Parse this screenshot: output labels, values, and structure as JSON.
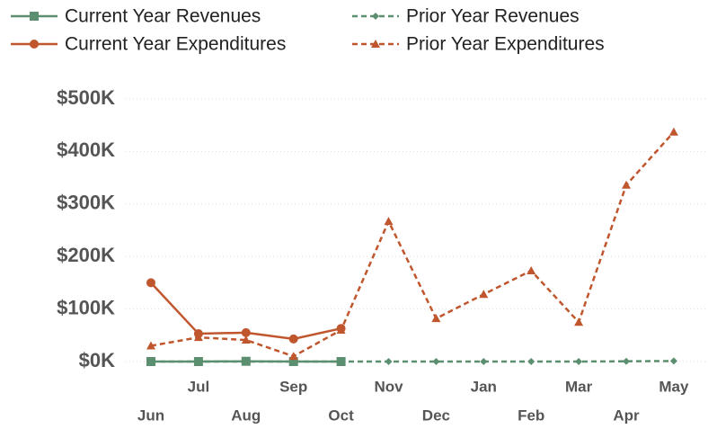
{
  "chart_data": {
    "type": "line",
    "categories": [
      "Jun",
      "Jul",
      "Aug",
      "Sep",
      "Oct",
      "Nov",
      "Dec",
      "Jan",
      "Feb",
      "Mar",
      "Apr",
      "May"
    ],
    "series": [
      {
        "name": "Current Year Revenues",
        "color": "#5b8f6f",
        "dash": false,
        "marker": "square",
        "values": [
          0,
          0,
          500,
          0,
          0,
          null,
          null,
          null,
          null,
          null,
          null,
          null
        ]
      },
      {
        "name": "Prior Year Revenues",
        "color": "#5b8f6f",
        "dash": true,
        "marker": "diamond",
        "values": [
          0,
          0,
          0,
          0,
          0,
          0,
          0,
          0,
          0,
          0,
          500,
          1000
        ]
      },
      {
        "name": "Current Year Expenditures",
        "color": "#c0562d",
        "dash": false,
        "marker": "circle",
        "values": [
          150000,
          53000,
          55000,
          43000,
          63000,
          null,
          null,
          null,
          null,
          null,
          null,
          null
        ]
      },
      {
        "name": "Prior Year Expenditures",
        "color": "#c0562d",
        "dash": true,
        "marker": "triangle",
        "values": [
          30000,
          46000,
          41000,
          10000,
          60000,
          267000,
          82000,
          128000,
          173000,
          75000,
          336000,
          437000
        ]
      }
    ],
    "ylim": [
      0,
      500000
    ],
    "yticks": [
      {
        "value": 0,
        "label": "$0K"
      },
      {
        "value": 100000,
        "label": "$100K"
      },
      {
        "value": 200000,
        "label": "$200K"
      },
      {
        "value": 300000,
        "label": "$300K"
      },
      {
        "value": 400000,
        "label": "$400K"
      },
      {
        "value": 500000,
        "label": "$500K"
      }
    ],
    "grid": true
  }
}
